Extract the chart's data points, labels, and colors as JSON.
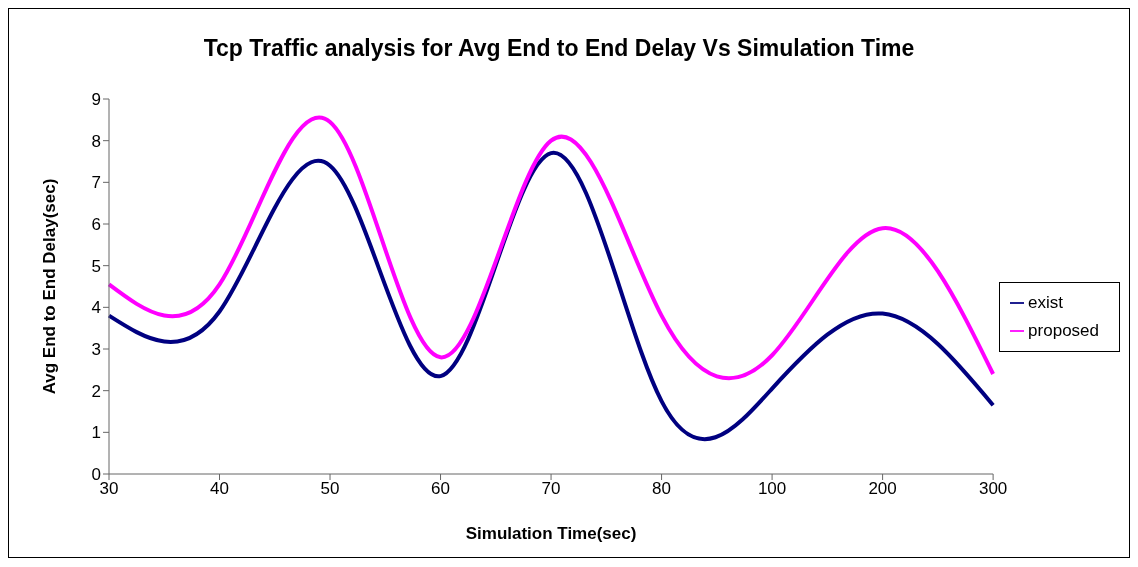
{
  "chart_data": {
    "type": "line",
    "title": "Tcp Traffic analysis for Avg End to End Delay Vs Simulation Time",
    "xlabel": "Simulation Time(sec)",
    "ylabel": "Avg End to End Delay(sec)",
    "categories": [
      "30",
      "40",
      "50",
      "60",
      "70",
      "80",
      "100",
      "200",
      "300"
    ],
    "series": [
      {
        "name": "exist",
        "color": "#000080",
        "values": [
          3.8,
          3.9,
          7.4,
          2.35,
          7.7,
          1.75,
          2.05,
          3.85,
          1.65
        ]
      },
      {
        "name": "proposed",
        "color": "#ff00ff",
        "values": [
          4.55,
          4.55,
          8.45,
          2.8,
          8.0,
          3.8,
          2.85,
          5.9,
          2.4
        ]
      }
    ],
    "ylim": [
      0,
      9
    ],
    "yticks": [
      0,
      1,
      2,
      3,
      4,
      5,
      6,
      7,
      8,
      9
    ],
    "grid": false,
    "legend": "right",
    "marker": "none",
    "line_style": "solid"
  }
}
